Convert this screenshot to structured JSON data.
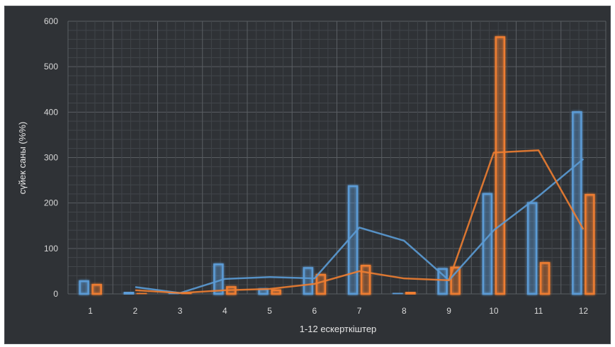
{
  "chart_data": {
    "type": "bar",
    "xlabel": "1-12 ескерткіштер",
    "ylabel": "сүйек саны (%%)",
    "ylim": [
      0,
      600
    ],
    "yticks": [
      0,
      100,
      200,
      300,
      400,
      500,
      600
    ],
    "grid": true,
    "categories": [
      "1",
      "2",
      "3",
      "4",
      "5",
      "6",
      "7",
      "8",
      "9",
      "10",
      "11",
      "12"
    ],
    "series": [
      {
        "kind": "bar",
        "color": "#5b9bd5",
        "values": [
          28,
          3,
          0,
          65,
          10,
          57,
          237,
          0,
          55,
          220,
          200,
          400
        ]
      },
      {
        "kind": "bar",
        "color": "#ed7d31",
        "values": [
          20,
          0,
          0,
          15,
          8,
          42,
          62,
          3,
          58,
          565,
          68,
          218
        ]
      },
      {
        "kind": "line",
        "color": "#5b9bd5",
        "values": [
          null,
          15,
          2,
          33,
          37,
          34,
          146,
          117,
          30,
          140,
          215,
          297
        ]
      },
      {
        "kind": "line",
        "color": "#ed7d31",
        "values": [
          null,
          8,
          2,
          8,
          11,
          22,
          50,
          34,
          30,
          311,
          316,
          142
        ]
      }
    ]
  }
}
